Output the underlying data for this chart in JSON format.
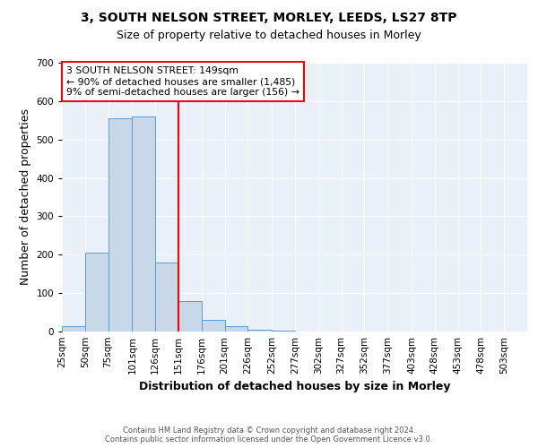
{
  "title_line1": "3, SOUTH NELSON STREET, MORLEY, LEEDS, LS27 8TP",
  "title_line2": "Size of property relative to detached houses in Morley",
  "xlabel": "Distribution of detached houses by size in Morley",
  "ylabel": "Number of detached properties",
  "bin_edges": [
    25,
    50,
    75,
    101,
    126,
    151,
    176,
    201,
    226,
    252,
    277,
    302,
    327,
    352,
    377,
    403,
    428,
    453,
    478,
    503,
    528
  ],
  "bar_heights": [
    15,
    205,
    555,
    560,
    180,
    80,
    30,
    15,
    5,
    2,
    1,
    1,
    1,
    0,
    0,
    1,
    0,
    1,
    0,
    0
  ],
  "bar_color": "#c8d8e8",
  "bar_edge_color": "#5b9bd5",
  "red_line_x": 151,
  "ylim": [
    0,
    700
  ],
  "annotation_text": "3 SOUTH NELSON STREET: 149sqm\n← 90% of detached houses are smaller (1,485)\n9% of semi-detached houses are larger (156) →",
  "annotation_box_color": "white",
  "annotation_box_edge_color": "red",
  "footer_text": "Contains HM Land Registry data © Crown copyright and database right 2024.\nContains public sector information licensed under the Open Government Licence v3.0.",
  "background_color": "#eaf0f8",
  "grid_color": "white",
  "title_fontsize": 10,
  "subtitle_fontsize": 9,
  "tick_label_fontsize": 7.5,
  "axis_label_fontsize": 9
}
